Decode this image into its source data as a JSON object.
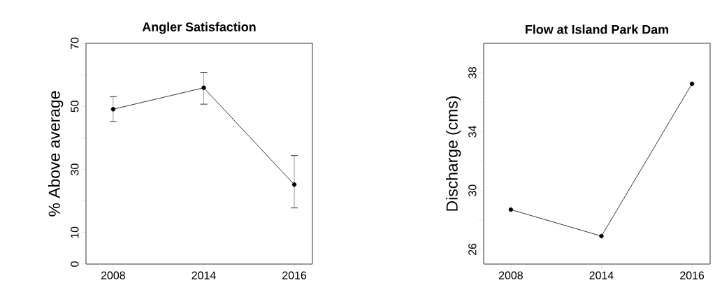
{
  "chart_data": [
    {
      "type": "line",
      "title": "Angler Satisfaction",
      "ylabel": "% Above average",
      "categories": [
        "2008",
        "2014",
        "2016"
      ],
      "values": [
        49.1,
        55.9,
        25.2
      ],
      "errors": [
        [
          45.2,
          53.1
        ],
        [
          50.7,
          60.8
        ],
        [
          17.8,
          34.4
        ]
      ],
      "color": "#000000",
      "ylim": [
        0,
        70
      ],
      "yticks": [
        0,
        10,
        {
          "value": 20,
          "label": null
        },
        30,
        {
          "value": 40,
          "label": null
        },
        50,
        {
          "value": 60,
          "label": null
        },
        70
      ],
      "marker": "circle",
      "line_style": "solid"
    },
    {
      "type": "line",
      "title": "Flow at Island Park Dam",
      "ylabel": "Discharge (cms)",
      "categories": [
        "2008",
        "2014",
        "2016"
      ],
      "values": [
        28.7,
        26.9,
        37.25
      ],
      "color": "#000000",
      "ylim": [
        25,
        40
      ],
      "yticks": [
        26,
        {
          "value": 28,
          "label": null
        },
        30,
        {
          "value": 32,
          "label": null
        },
        34,
        {
          "value": 36,
          "label": null
        },
        38
      ],
      "marker": "circle",
      "line_style": "solid"
    }
  ]
}
